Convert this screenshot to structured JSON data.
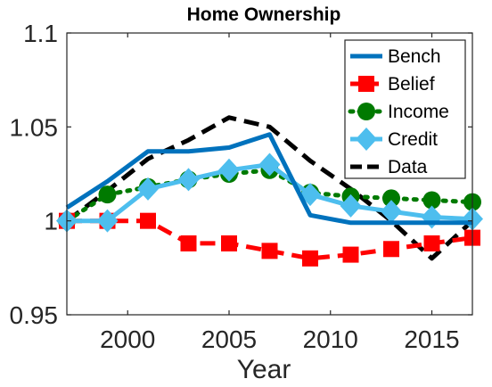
{
  "chart_data": {
    "type": "line",
    "title": "Home Ownership",
    "xlabel": "Year",
    "ylabel": "",
    "xlim": [
      1997,
      2017
    ],
    "ylim": [
      0.95,
      1.1
    ],
    "xticks": [
      2000,
      2005,
      2010,
      2015
    ],
    "yticks": [
      0.95,
      1,
      1.05,
      1.1
    ],
    "xtick_labels": [
      "2000",
      "2005",
      "2010",
      "2015"
    ],
    "ytick_labels": [
      "0.95",
      "1",
      "1.05",
      "1.1"
    ],
    "grid": false,
    "legend_position": "top-right",
    "series": [
      {
        "name": "Bench",
        "color": "#0072bd",
        "line": "solid",
        "marker": "none",
        "x": [
          1997,
          1999,
          2001,
          2003,
          2005,
          2007,
          2009,
          2011,
          2013,
          2015,
          2017
        ],
        "y": [
          1.007,
          1.021,
          1.037,
          1.037,
          1.039,
          1.046,
          1.003,
          0.999,
          0.999,
          0.999,
          0.999
        ]
      },
      {
        "name": "Belief",
        "color": "#ff0000",
        "line": "dashed",
        "marker": "square",
        "x": [
          1997,
          1999,
          2001,
          2003,
          2005,
          2007,
          2009,
          2011,
          2013,
          2015,
          2017
        ],
        "y": [
          1.0,
          1.0,
          1.0,
          0.988,
          0.988,
          0.984,
          0.98,
          0.982,
          0.985,
          0.988,
          0.991
        ]
      },
      {
        "name": "Income",
        "color": "#007a00",
        "line": "dotted",
        "marker": "circle",
        "x": [
          1997,
          1999,
          2001,
          2003,
          2005,
          2007,
          2009,
          2011,
          2013,
          2015,
          2017
        ],
        "y": [
          1.0,
          1.014,
          1.018,
          1.022,
          1.025,
          1.027,
          1.015,
          1.013,
          1.012,
          1.011,
          1.01
        ]
      },
      {
        "name": "Credit",
        "color": "#4dbeee",
        "line": "solid",
        "marker": "diamond",
        "x": [
          1997,
          1999,
          2001,
          2003,
          2005,
          2007,
          2009,
          2011,
          2013,
          2015,
          2017
        ],
        "y": [
          1.0,
          1.0,
          1.017,
          1.022,
          1.027,
          1.03,
          1.014,
          1.008,
          1.005,
          1.002,
          1.001
        ]
      },
      {
        "name": "Data",
        "color": "#000000",
        "line": "dashed",
        "marker": "none",
        "x": [
          1997,
          1999,
          2001,
          2003,
          2005,
          2007,
          2009,
          2011,
          2013,
          2015,
          2017
        ],
        "y": [
          1.0,
          1.016,
          1.033,
          1.043,
          1.055,
          1.05,
          1.032,
          1.017,
          1.0,
          0.98,
          1.0
        ]
      }
    ]
  }
}
